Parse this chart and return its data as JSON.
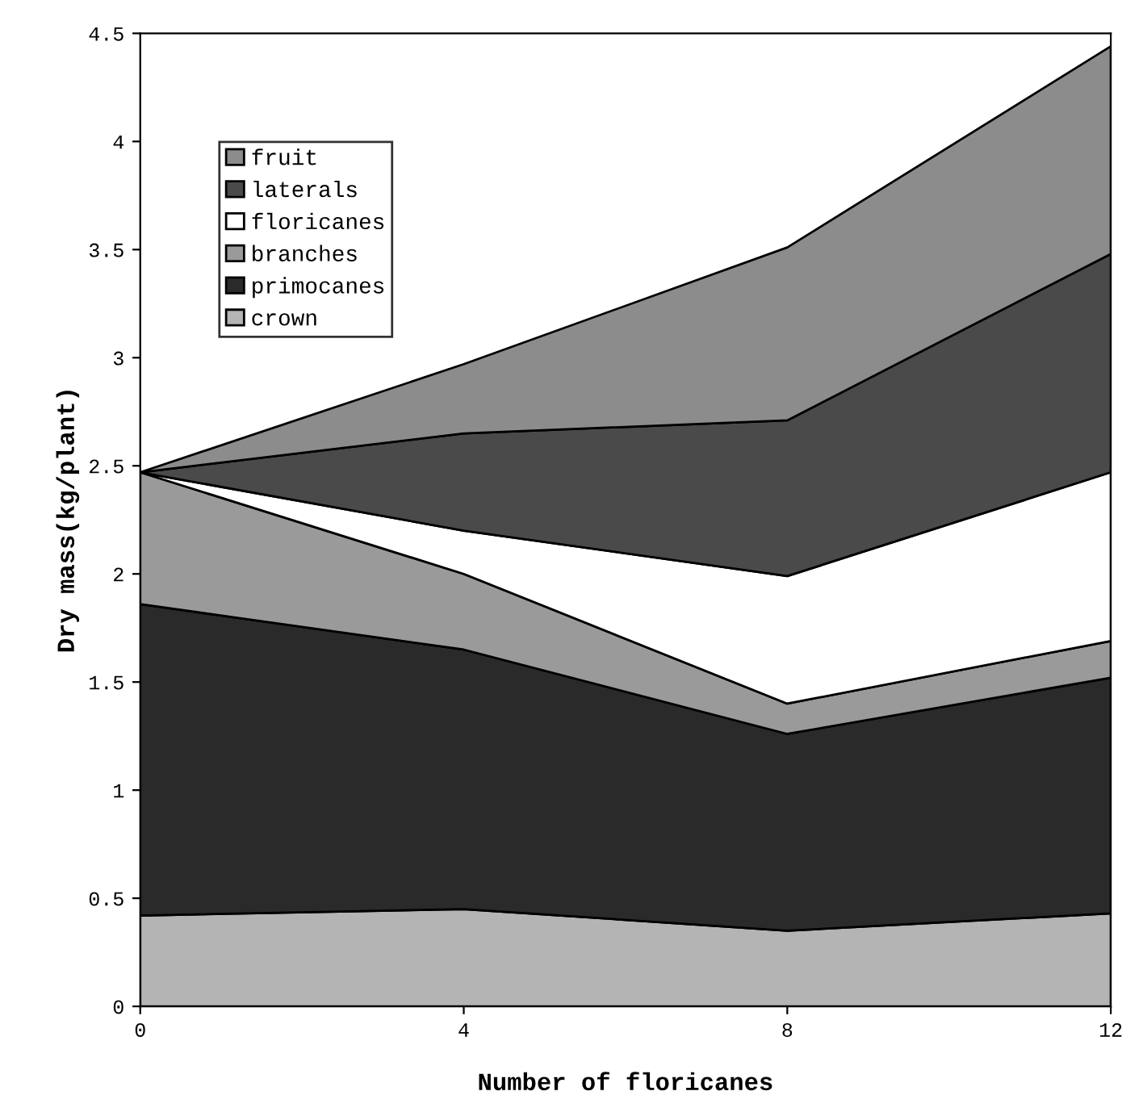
{
  "chart_data": {
    "type": "area",
    "stacked": true,
    "xlabel": "Number of floricanes",
    "ylabel": "Dry mass(kg/plant)",
    "x": [
      0,
      4,
      8,
      12
    ],
    "series": [
      {
        "name": "crown",
        "color": "#b4b4b4",
        "values": [
          0.42,
          0.45,
          0.35,
          0.43
        ]
      },
      {
        "name": "primocanes",
        "color": "#2a2a2a",
        "values": [
          1.44,
          1.2,
          0.91,
          1.09
        ]
      },
      {
        "name": "branches",
        "color": "#9a9a9a",
        "values": [
          0.61,
          0.35,
          0.14,
          0.17
        ]
      },
      {
        "name": "floricanes",
        "color": "#ffffff",
        "values": [
          0,
          0.2,
          0.59,
          0.78
        ]
      },
      {
        "name": "laterals",
        "color": "#4a4a4a",
        "values": [
          0,
          0.45,
          0.72,
          1.01
        ]
      },
      {
        "name": "fruit",
        "color": "#8c8c8c",
        "values": [
          0,
          0.32,
          0.8,
          0.96
        ]
      }
    ],
    "xlim": [
      0,
      12
    ],
    "xticks": [
      0,
      4,
      8,
      12
    ],
    "ylim": [
      0,
      4.5
    ],
    "yticks": [
      0,
      0.5,
      1,
      1.5,
      2,
      2.5,
      3,
      3.5,
      4,
      4.5
    ],
    "grid": false,
    "legend": "top left"
  }
}
